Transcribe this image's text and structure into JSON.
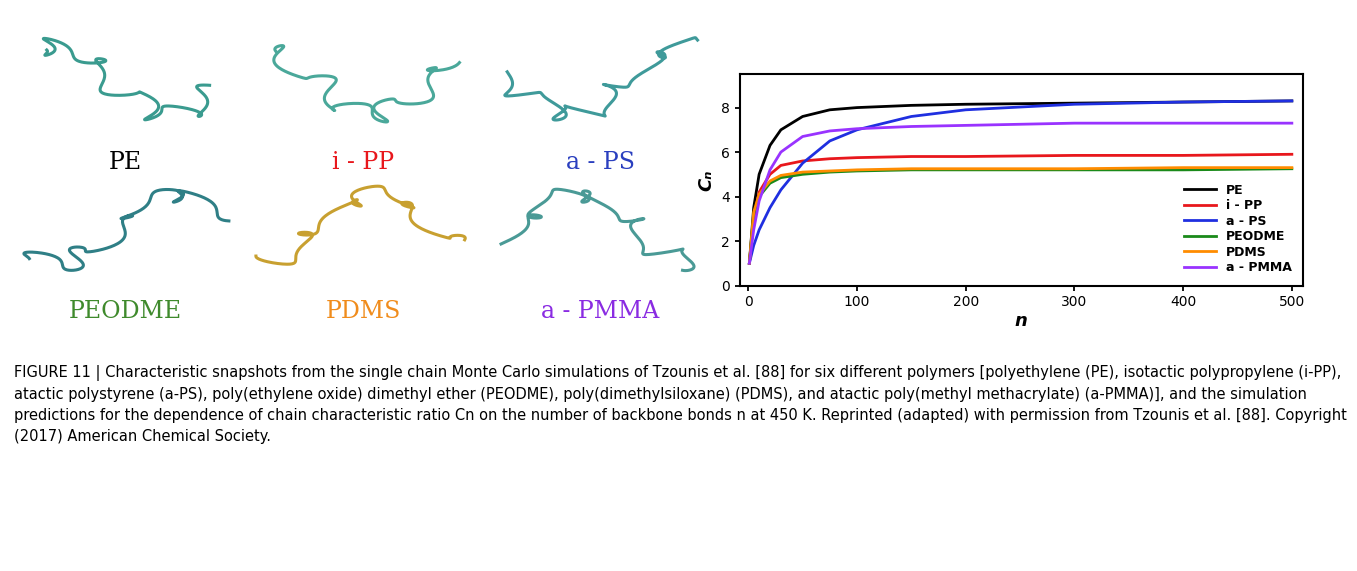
{
  "snapshots": [
    {
      "label": "PE",
      "color": "#000000"
    },
    {
      "label": "i - PP",
      "color": "#e8171c"
    },
    {
      "label": "a - PS",
      "color": "#2a3fbf"
    },
    {
      "label": "PEODME",
      "color": "#3f8a2c"
    },
    {
      "label": "PDMS",
      "color": "#f08c1c"
    },
    {
      "label": "a - PMMA",
      "color": "#8a2be2"
    }
  ],
  "chart_data": {
    "type": "line",
    "x_label": "n",
    "y_label": "Cₙ",
    "x": [
      1,
      5,
      10,
      20,
      30,
      50,
      75,
      100,
      150,
      200,
      300,
      400,
      500
    ],
    "series": [
      {
        "name": "PE",
        "color": "#000000",
        "values": [
          1.0,
          3.5,
          5.0,
          6.3,
          7.0,
          7.6,
          7.9,
          8.0,
          8.1,
          8.15,
          8.2,
          8.25,
          8.3
        ]
      },
      {
        "name": "i - PP",
        "color": "#e8171c",
        "values": [
          1.0,
          3.0,
          4.2,
          5.0,
          5.4,
          5.6,
          5.7,
          5.75,
          5.8,
          5.8,
          5.85,
          5.85,
          5.9
        ]
      },
      {
        "name": "a - PS",
        "color": "#1f2fe0",
        "values": [
          1.0,
          1.8,
          2.5,
          3.5,
          4.3,
          5.5,
          6.5,
          7.0,
          7.6,
          7.9,
          8.15,
          8.25,
          8.3
        ]
      },
      {
        "name": "PEODME",
        "color": "#1a8a1a",
        "values": [
          1.0,
          3.2,
          4.0,
          4.6,
          4.85,
          5.0,
          5.1,
          5.15,
          5.2,
          5.2,
          5.2,
          5.2,
          5.25
        ]
      },
      {
        "name": "PDMS",
        "color": "#ff8c00",
        "values": [
          1.0,
          3.3,
          4.1,
          4.7,
          4.95,
          5.1,
          5.15,
          5.2,
          5.25,
          5.25,
          5.25,
          5.3,
          5.3
        ]
      },
      {
        "name": "a - PMMA",
        "color": "#9933ff",
        "values": [
          1.0,
          2.5,
          3.8,
          5.2,
          6.0,
          6.7,
          6.95,
          7.05,
          7.15,
          7.2,
          7.3,
          7.3,
          7.3
        ]
      }
    ],
    "xlim": [
      -8,
      510
    ],
    "ylim": [
      0,
      9.5
    ],
    "xticks": [
      0,
      100,
      200,
      300,
      400,
      500
    ],
    "yticks": [
      0,
      2,
      4,
      6,
      8
    ],
    "legend": "lower right",
    "grid": false
  },
  "caption": "FIGURE 11 | Characteristic snapshots from the single chain Monte Carlo simulations of Tzounis et al. [88] for six different polymers [polyethylene (PE), isotactic polypropylene (i-PP), atactic polystyrene (a-PS), poly(ethylene oxide) dimethyl ether (PEODME), poly(dimethylsiloxane) (PDMS), and atactic poly(methyl methacrylate) (a-PMMA)], and the simulation predictions for the dependence of chain characteristic ratio Cn on the number of backbone bonds n at 450 K. Reprinted (adapted) with permission from Tzounis et al. [88]. Copyright (2017) American Chemical Society."
}
